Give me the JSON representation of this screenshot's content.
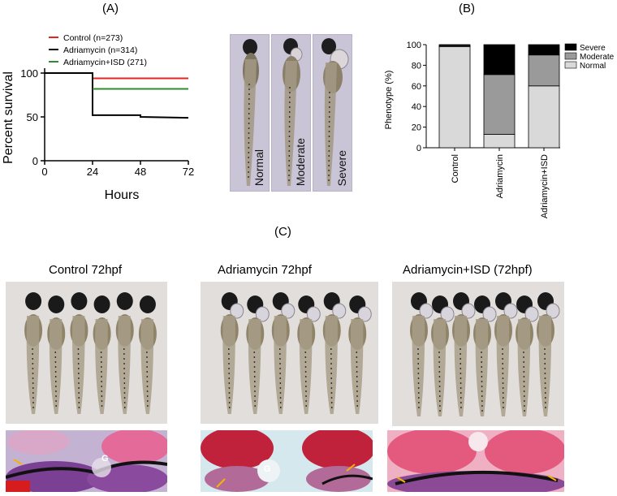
{
  "panels": {
    "a_label": "(A)",
    "b_label": "(B)",
    "c_label": "(C)"
  },
  "survival_chart": {
    "ylabel": "Percent survival",
    "xlabel": "Hours",
    "legend": [
      "Control (n=273)",
      "Adriamycin (n=314)",
      "Adriamycin+ISD (271)"
    ]
  },
  "phenotype_panel": {
    "labels": [
      "Normal",
      "Moderate",
      "Severe"
    ]
  },
  "phenotype_chart": {
    "ylabel": "Phenotype (%)",
    "legend": [
      "Severe",
      "Moderate",
      "Normal"
    ]
  },
  "photos": {
    "titles": [
      "Control 72hpf",
      "Adriamycin 72hpf",
      "Adriamycin+ISD (72hpf)"
    ],
    "histo_marker": "G"
  },
  "colors": {
    "control": "#e8221c",
    "adriamycin": "#000000",
    "isd": "#2e8b2e",
    "severe": "#000000",
    "moderate": "#9a9a9a",
    "normal": "#d9d9d9"
  },
  "chart_data": [
    {
      "type": "line",
      "xlabel": "Hours",
      "ylabel": "Percent survival",
      "x_ticks": [
        0,
        24,
        48,
        72
      ],
      "y_ticks": [
        0,
        50,
        100
      ],
      "xlim": [
        0,
        72
      ],
      "ylim": [
        0,
        100
      ],
      "series": [
        {
          "name": "Control (n=273)",
          "x": [
            0,
            24,
            24,
            72
          ],
          "y": [
            100,
            100,
            94,
            94
          ]
        },
        {
          "name": "Adriamycin (n=314)",
          "x": [
            0,
            24,
            24,
            48,
            48,
            72
          ],
          "y": [
            100,
            100,
            52,
            52,
            50,
            49
          ]
        },
        {
          "name": "Adriamycin+ISD (271)",
          "x": [
            24,
            72
          ],
          "y": [
            82,
            82
          ]
        }
      ]
    },
    {
      "type": "bar",
      "stacked": true,
      "ylabel": "Phenotype (%)",
      "categories": [
        "Control",
        "Adriamycin",
        "Adriamycin+ISD"
      ],
      "y_ticks": [
        0,
        20,
        40,
        60,
        80,
        100
      ],
      "ylim": [
        0,
        100
      ],
      "legend_position": "top-right",
      "series": [
        {
          "name": "Normal",
          "values": [
            98,
            13,
            60
          ]
        },
        {
          "name": "Moderate",
          "values": [
            1,
            58,
            30
          ]
        },
        {
          "name": "Severe",
          "values": [
            1,
            29,
            10
          ]
        }
      ]
    }
  ]
}
